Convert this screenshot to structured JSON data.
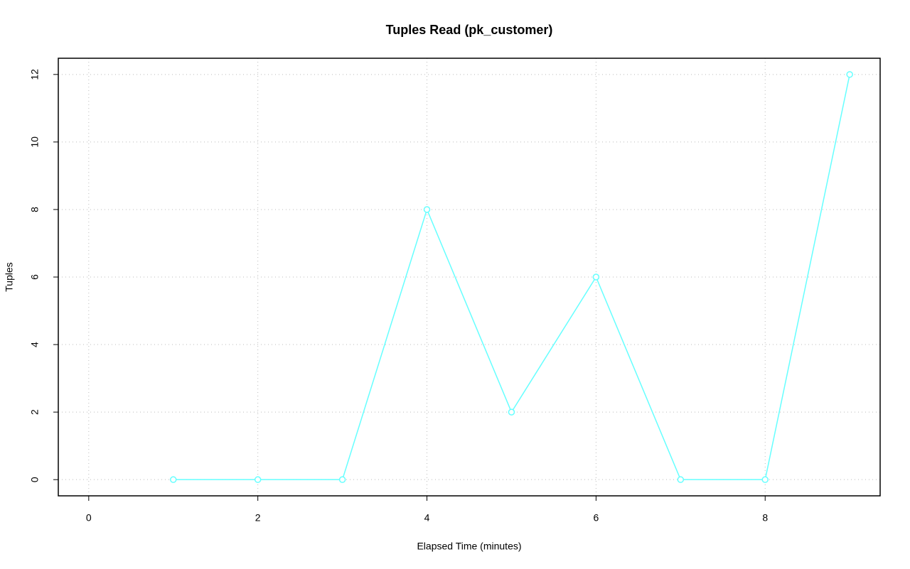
{
  "chart_data": {
    "type": "line",
    "title": "Tuples Read (pk_customer)",
    "xlabel": "Elapsed Time (minutes)",
    "ylabel": "Tuples",
    "x": [
      1,
      2,
      3,
      4,
      5,
      6,
      7,
      8,
      9
    ],
    "values": [
      0,
      0,
      0,
      8,
      2,
      6,
      0,
      0,
      12
    ],
    "color": "#66ffff",
    "xlim": [
      -0.36,
      9.36
    ],
    "ylim": [
      -0.48,
      12.48
    ],
    "xticks": [
      0,
      2,
      4,
      6,
      8
    ],
    "yticks": [
      0,
      2,
      4,
      6,
      8,
      10,
      12
    ],
    "grid": true
  }
}
